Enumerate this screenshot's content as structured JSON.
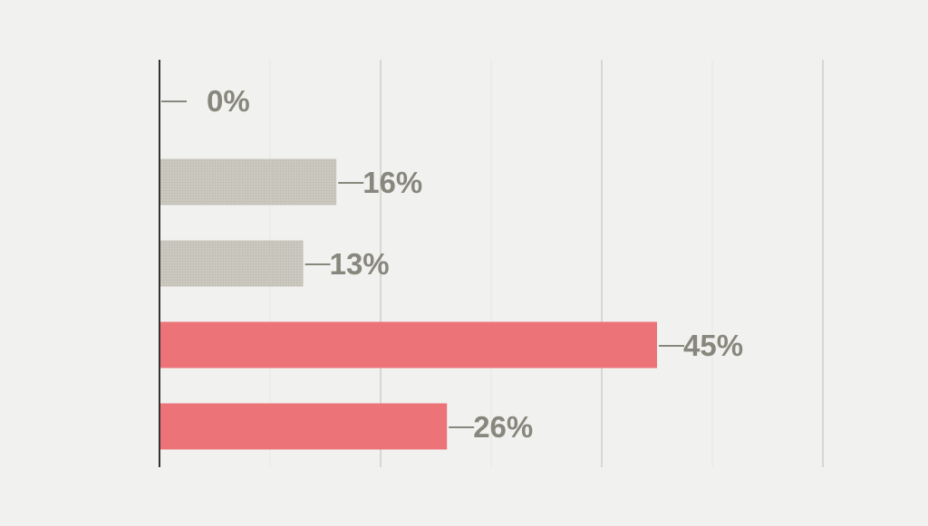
{
  "chart_data": {
    "type": "bar",
    "orientation": "horizontal",
    "title": "",
    "xlabel": "",
    "ylabel": "",
    "categories": [
      "",
      "",
      "",
      "",
      ""
    ],
    "values": [
      0,
      16,
      13,
      45,
      26
    ],
    "value_labels": [
      "0%",
      "16%",
      "13%",
      "45%",
      "26%"
    ],
    "xlim": [
      0,
      60
    ],
    "grid": true,
    "legend": "none",
    "bar_colors": [
      "#c9c7be",
      "#c9c7be",
      "#c9c7be",
      "#ec7378",
      "#ec7378"
    ]
  },
  "colors": {
    "background": "#f1f1ef",
    "axis": "#333333",
    "grid_major": "#d7d7d4",
    "grid_minor": "#e7e7e4",
    "label_text": "#88877d",
    "leader_line": "#88877d",
    "neutral_bar": "#c9c7be",
    "highlight_bar": "#ec7378"
  }
}
